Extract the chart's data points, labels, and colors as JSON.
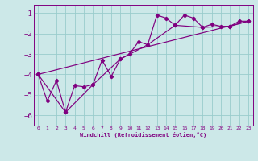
{
  "xlabel": "Windchill (Refroidissement éolien,°C)",
  "ylabel": "",
  "bg_color": "#cce8e8",
  "line_color": "#800080",
  "grid_color": "#99cccc",
  "spine_color": "#800080",
  "xlim": [
    -0.5,
    23.5
  ],
  "ylim": [
    -6.5,
    -0.6
  ],
  "yticks": [
    -6,
    -5,
    -4,
    -3,
    -2,
    -1
  ],
  "xticks": [
    0,
    1,
    2,
    3,
    4,
    5,
    6,
    7,
    8,
    9,
    10,
    11,
    12,
    13,
    14,
    15,
    16,
    17,
    18,
    19,
    20,
    21,
    22,
    23
  ],
  "series1_x": [
    0,
    1,
    2,
    3,
    4,
    5,
    6,
    7,
    8,
    9,
    10,
    11,
    12,
    13,
    14,
    15,
    16,
    17,
    18,
    19,
    20,
    21,
    22,
    23
  ],
  "series1_y": [
    -4.0,
    -5.3,
    -4.3,
    -5.85,
    -4.55,
    -4.6,
    -4.5,
    -3.3,
    -4.1,
    -3.25,
    -3.0,
    -2.4,
    -2.55,
    -1.1,
    -1.25,
    -1.6,
    -1.1,
    -1.25,
    -1.7,
    -1.55,
    -1.65,
    -1.65,
    -1.4,
    -1.4
  ],
  "series2_x": [
    0,
    3,
    6,
    9,
    12,
    15,
    18,
    21,
    23
  ],
  "series2_y": [
    -4.0,
    -5.85,
    -4.5,
    -3.25,
    -2.55,
    -1.6,
    -1.7,
    -1.65,
    -1.4
  ],
  "series3_x": [
    0,
    23
  ],
  "series3_y": [
    -4.0,
    -1.4
  ]
}
